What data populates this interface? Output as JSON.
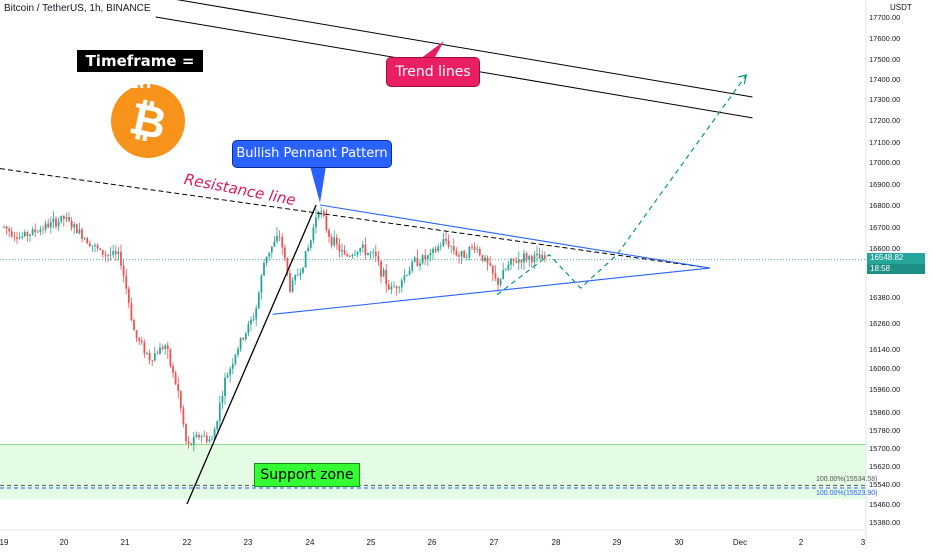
{
  "header": {
    "symbol": "Bitcoin / TetherUS, 1h, BINANCE",
    "currency": "USDT"
  },
  "annotations": {
    "timeframe": "Timeframe = 1H",
    "trend_lines": "Trend lines",
    "pennant": "Bullish Pennant Pattern",
    "resistance": "Resistance line",
    "support": "Support zone",
    "fib_upper": "100.00%(15534.58)",
    "fib_lower": "100.00%(15523.90)"
  },
  "colors": {
    "up": "#26a69a",
    "down": "#ef5350",
    "pennant": "#2962ff",
    "projection": "#089981",
    "support_zone": "#ccf5cc",
    "resistance": "#000000"
  },
  "logo": {
    "icon": "bitcoin-logo-icon",
    "color": "#f7931a"
  },
  "price_tag": {
    "price": "16548.82",
    "countdown": "18:58"
  },
  "chart_data": {
    "type": "candlestick",
    "x_ticks": [
      "19",
      "20",
      "21",
      "22",
      "23",
      "24",
      "25",
      "26",
      "27",
      "28",
      "29",
      "30",
      "Dec",
      "2",
      "3"
    ],
    "y_ticks": [
      17700,
      17600,
      17500,
      17400,
      17300,
      17200,
      17100,
      17000,
      16900,
      16800,
      16700,
      16600,
      16380,
      16260,
      16140,
      16060,
      15960,
      15860,
      15780,
      15700,
      15620,
      15540,
      15460,
      15380
    ],
    "y_tick_labels": [
      "17700.00",
      "17600.00",
      "17500.00",
      "17400.00",
      "17300.00",
      "17200.00",
      "17100.00",
      "17000.00",
      "16900.00",
      "16800.00",
      "16700.00",
      "16600.00",
      "16380.00",
      "16260.00",
      "16140.00",
      "16060.00",
      "15960.00",
      "15860.00",
      "15780.00",
      "15700.00",
      "15620.00",
      "15540.00",
      "15460.00",
      "15380.00"
    ],
    "last_price": 16548.82,
    "support_zone": [
      15480,
      15715
    ],
    "fib_levels": [
      15534.58,
      15523.9
    ],
    "pennant": {
      "upper": [
        [
          "24",
          16800
        ],
        [
          "30.5",
          16510
        ]
      ],
      "lower": [
        [
          "23.4",
          16300
        ],
        [
          "30.5",
          16510
        ]
      ]
    },
    "resistance_line": [
      [
        "18.9",
        16970
      ],
      [
        "30.5",
        16510
      ]
    ],
    "rally_line": [
      [
        "22",
        15460
      ],
      [
        "24.1",
        16800
      ]
    ],
    "trend_channel": [
      [
        [
          "21.5",
          17800
        ],
        [
          "31.2",
          17310
        ]
      ],
      [
        [
          "21.5",
          17700
        ],
        [
          "31.2",
          17210
        ]
      ]
    ],
    "projection_path": [
      [
        "27.05",
        16390
      ],
      [
        "27.9",
        16570
      ],
      [
        "28.4",
        16420
      ],
      [
        "29",
        16570
      ],
      [
        "31.1",
        17420
      ]
    ]
  }
}
